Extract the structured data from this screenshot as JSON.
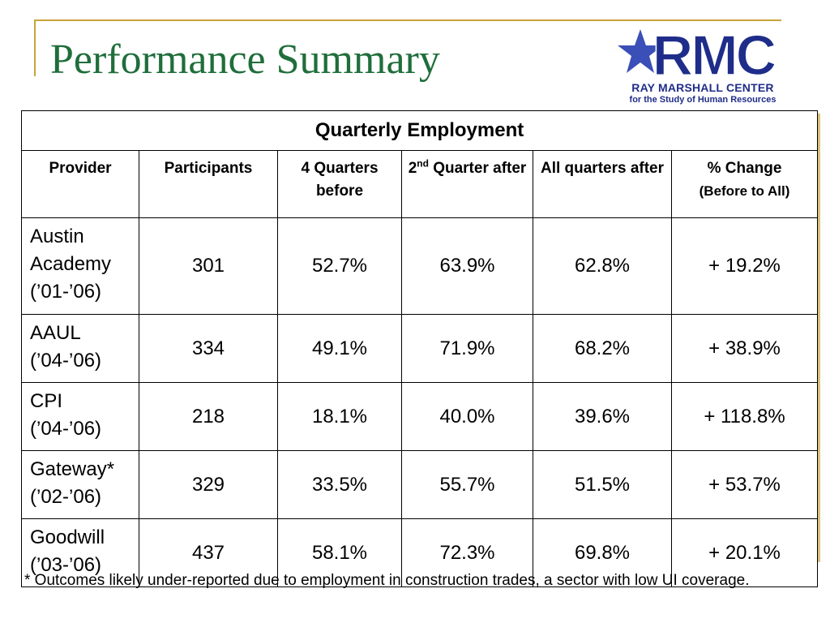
{
  "title": "Performance Summary",
  "logo": {
    "mark": "RMC",
    "line1": "RAY MARSHALL CENTER",
    "line2": "for the Study of Human Resources",
    "color": "#1f2d8a"
  },
  "table": {
    "caption": "Quarterly Employment",
    "headers": {
      "provider": "Provider",
      "participants": "Participants",
      "before": "4 Quarters before",
      "second_pre": "2",
      "second_sup": "nd",
      "second_post": " Quarter after",
      "all": "All quarters after",
      "change_main": "% Change",
      "change_sub": "(Before to All)"
    },
    "rows": [
      {
        "provider": [
          "Austin",
          "Academy",
          "(’01-’06)"
        ],
        "participants": "301",
        "before": "52.7%",
        "second": "63.9%",
        "all": "62.8%",
        "change": "+ 19.2%"
      },
      {
        "provider": [
          "AAUL",
          "(’04-’06)"
        ],
        "participants": "334",
        "before": "49.1%",
        "second": "71.9%",
        "all": "68.2%",
        "change": "+ 38.9%"
      },
      {
        "provider": [
          "CPI",
          "(’04-’06)"
        ],
        "participants": "218",
        "before": "18.1%",
        "second": "40.0%",
        "all": "39.6%",
        "change": "+ 118.8%"
      },
      {
        "provider": [
          "Gateway*",
          "(’02-’06)"
        ],
        "participants": "329",
        "before": "33.5%",
        "second": "55.7%",
        "all": "51.5%",
        "change": "+ 53.7%"
      },
      {
        "provider": [
          "Goodwill",
          "(’03-’06)"
        ],
        "participants": "437",
        "before": "58.1%",
        "second": "72.3%",
        "all": "69.8%",
        "change": "+ 20.1%"
      }
    ]
  },
  "footnote": "* Outcomes likely under-reported due to employment in construction trades, a sector with low UI coverage.",
  "colors": {
    "title": "#1f6e3b",
    "accent": "#c9a43a"
  }
}
